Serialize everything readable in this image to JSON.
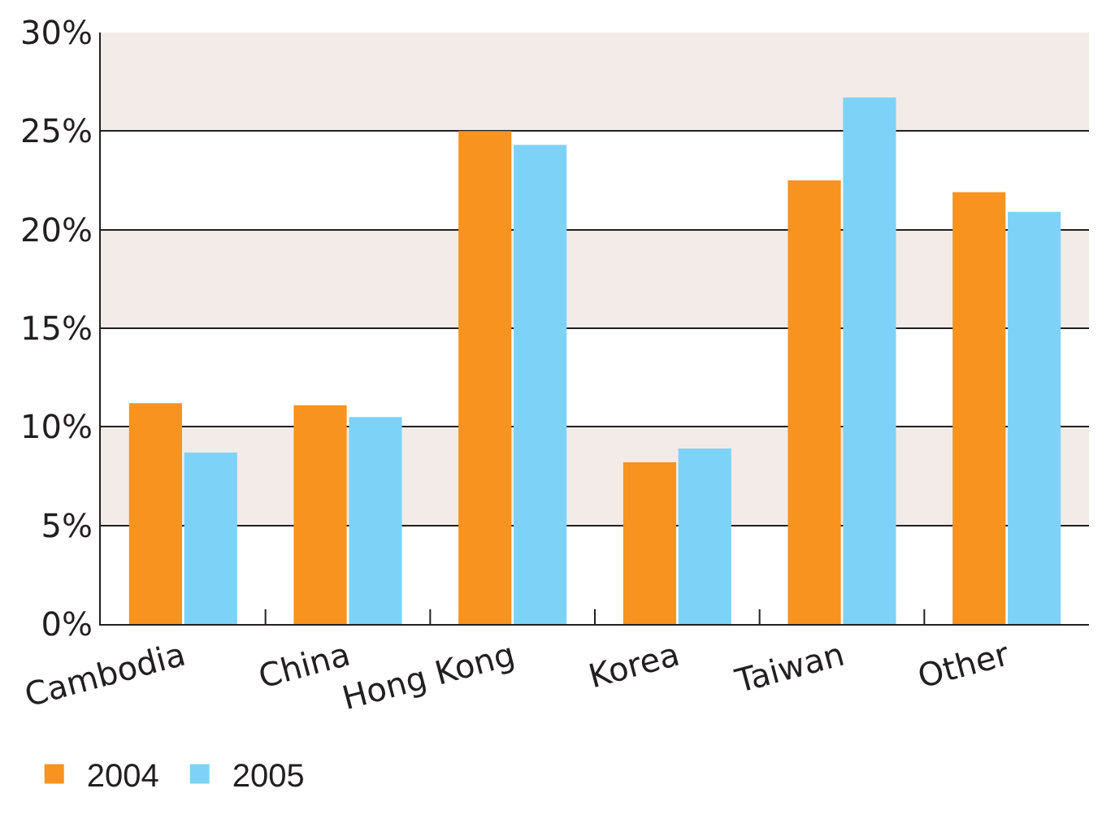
{
  "chart_data": {
    "type": "bar",
    "categories": [
      "Cambodia",
      "China",
      "Hong Kong",
      "Korea",
      "Taiwan",
      "Other"
    ],
    "series": [
      {
        "name": "2004",
        "color": "#f7931e",
        "values": [
          11.2,
          11.1,
          25.0,
          8.2,
          22.5,
          21.9
        ]
      },
      {
        "name": "2005",
        "color": "#7dd3f7",
        "values": [
          8.7,
          10.5,
          24.3,
          8.9,
          26.7,
          20.9
        ]
      }
    ],
    "ylim": [
      0,
      30
    ],
    "yticks": [
      {
        "value": 0,
        "label": "0%"
      },
      {
        "value": 5,
        "label": "5%"
      },
      {
        "value": 10,
        "label": "10%"
      },
      {
        "value": 15,
        "label": "15%"
      },
      {
        "value": 20,
        "label": "20%"
      },
      {
        "value": 25,
        "label": "25%"
      },
      {
        "value": 30,
        "label": "30%"
      }
    ],
    "bands": [
      {
        "axis": "y",
        "from": 5,
        "to": 10,
        "color": "#f3ebe8"
      },
      {
        "axis": "y",
        "from": 15,
        "to": 20,
        "color": "#f3ebe8"
      },
      {
        "axis": "y",
        "from": 25,
        "to": 30,
        "color": "#f3ebe8"
      }
    ],
    "grid": "y",
    "legend": "bottom left"
  }
}
